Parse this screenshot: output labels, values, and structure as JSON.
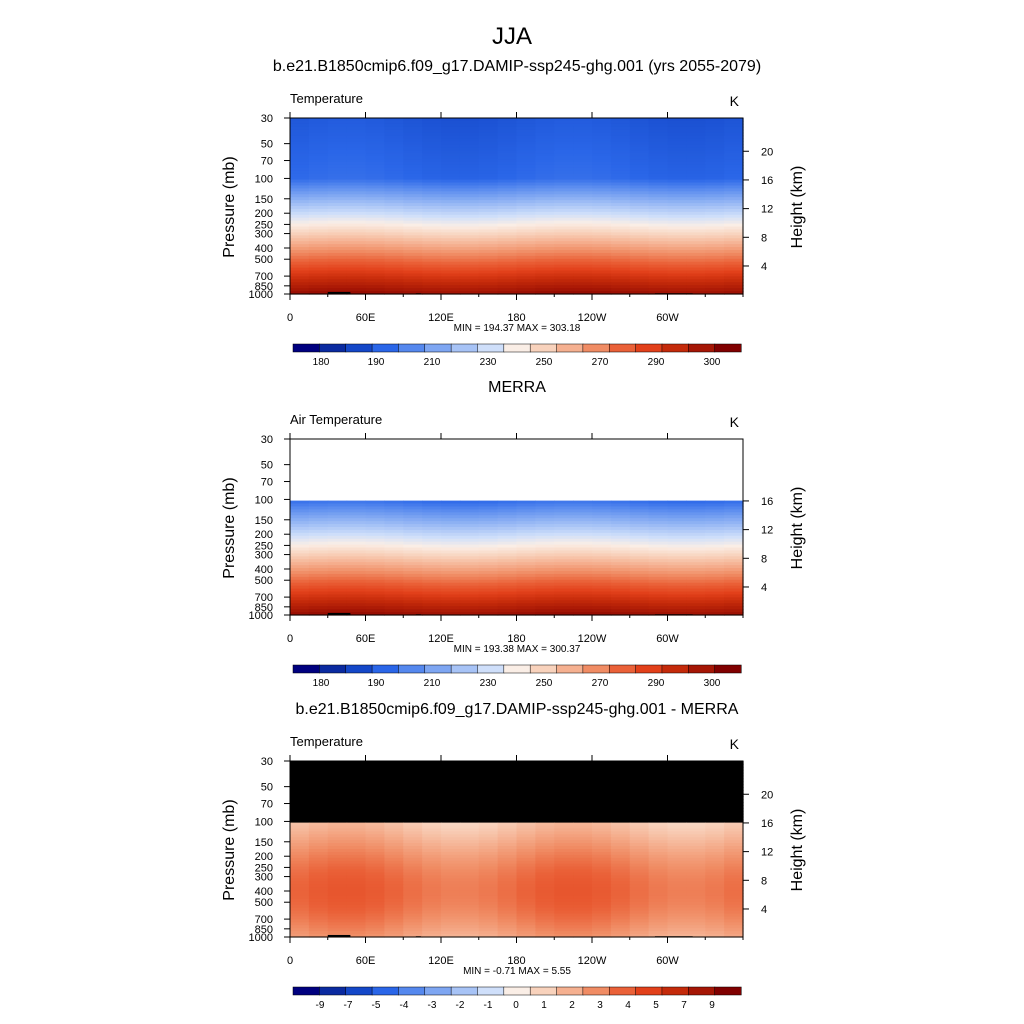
{
  "figure": {
    "title": "JJA",
    "unit_label": "K"
  },
  "axes": {
    "ylabel_left": "Pressure (mb)",
    "ylabel_right": "Height (km)",
    "pressure_ticks": [
      "30",
      "50",
      "70",
      "100",
      "150",
      "200",
      "250",
      "300",
      "400",
      "500",
      "700",
      "850",
      "1000"
    ],
    "height_ticks": [
      "4",
      "8",
      "12",
      "16",
      "20"
    ],
    "lon_ticks": [
      "0",
      "60E",
      "120E",
      "180",
      "120W",
      "60W"
    ]
  },
  "chart_data": [
    {
      "type": "heatmap",
      "title": "b.e21.B1850cmip6.f09_g17.DAMIP-ssp245-ghg.001 (yrs 2055-2079)",
      "variable": "Temperature",
      "unit": "K",
      "stats": "MIN = 194.37  MAX = 303.18",
      "min": 194.37,
      "max": 303.18,
      "top_pressure": 30,
      "colorbar_ticks": [
        "180",
        "190",
        "210",
        "230",
        "250",
        "270",
        "290",
        "300"
      ],
      "colorbar_colors": [
        "#00007f",
        "#0a2aa0",
        "#1447c8",
        "#2a66e8",
        "#5588ee",
        "#7ea6f2",
        "#a7c3f6",
        "#cfdffa",
        "#faeee6",
        "#f8d2bc",
        "#f5b090",
        "#f08c64",
        "#ea6138",
        "#e2401a",
        "#c42a0a",
        "#a51605",
        "#800000"
      ]
    },
    {
      "type": "heatmap",
      "title": "MERRA",
      "variable": "Air Temperature",
      "unit": "K",
      "stats": "MIN = 193.38  MAX = 300.37",
      "min": 193.38,
      "max": 300.37,
      "top_pressure": 100,
      "colorbar_ticks": [
        "180",
        "190",
        "210",
        "230",
        "250",
        "270",
        "290",
        "300"
      ],
      "colorbar_colors": [
        "#00007f",
        "#0a2aa0",
        "#1447c8",
        "#2a66e8",
        "#5588ee",
        "#7ea6f2",
        "#a7c3f6",
        "#cfdffa",
        "#faeee6",
        "#f8d2bc",
        "#f5b090",
        "#f08c64",
        "#ea6138",
        "#e2401a",
        "#c42a0a",
        "#a51605",
        "#800000"
      ]
    },
    {
      "type": "heatmap",
      "title": "b.e21.B1850cmip6.f09_g17.DAMIP-ssp245-ghg.001 - MERRA",
      "variable": "Temperature",
      "unit": "K",
      "stats": "MIN =  -0.71  MAX =   5.55",
      "min": -0.71,
      "max": 5.55,
      "masked_above_pressure": 100,
      "colorbar_ticks": [
        "-9",
        "-7",
        "-5",
        "-4",
        "-3",
        "-2",
        "-1",
        "0",
        "1",
        "2",
        "3",
        "4",
        "5",
        "7",
        "9"
      ],
      "colorbar_colors": [
        "#00007f",
        "#0a2aa0",
        "#1447c8",
        "#2a66e8",
        "#5588ee",
        "#7ea6f2",
        "#a7c3f6",
        "#cfdffa",
        "#faeee6",
        "#f8d2bc",
        "#f5b090",
        "#f08c64",
        "#ea6138",
        "#e2401a",
        "#c42a0a",
        "#a51605",
        "#800000"
      ]
    }
  ]
}
